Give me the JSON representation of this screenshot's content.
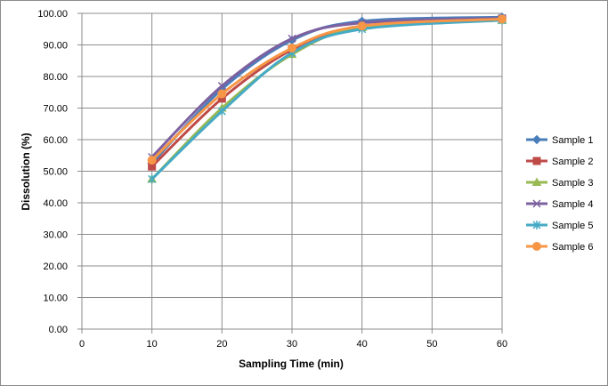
{
  "chart_data": {
    "type": "line",
    "title": "",
    "xlabel": "Sampling Time (min)",
    "ylabel": "Dissolution (%)",
    "xlim": [
      0,
      60
    ],
    "ylim": [
      0,
      100
    ],
    "x_ticks": [
      "0",
      "10",
      "20",
      "30",
      "40",
      "50",
      "60"
    ],
    "y_ticks": [
      "0.00",
      "10.00",
      "20.00",
      "30.00",
      "40.00",
      "50.00",
      "60.00",
      "70.00",
      "80.00",
      "90.00",
      "100.00"
    ],
    "grid": true,
    "smooth": true,
    "legend_position": "right",
    "x": [
      10,
      20,
      30,
      40,
      60
    ],
    "series": [
      {
        "name": "Sample 1",
        "color": "#4a7ebb",
        "marker": "diamond",
        "values": [
          52.5,
          76.0,
          91.5,
          97.5,
          98.8
        ]
      },
      {
        "name": "Sample 2",
        "color": "#be4b48",
        "marker": "square",
        "values": [
          51.5,
          73.0,
          88.5,
          96.0,
          98.2
        ]
      },
      {
        "name": "Sample 3",
        "color": "#98b954",
        "marker": "triangle",
        "values": [
          47.5,
          70.0,
          87.0,
          95.5,
          97.8
        ]
      },
      {
        "name": "Sample 4",
        "color": "#7d60a0",
        "marker": "x",
        "values": [
          54.5,
          77.0,
          92.0,
          97.0,
          98.5
        ]
      },
      {
        "name": "Sample 5",
        "color": "#46aac5",
        "marker": "star",
        "values": [
          47.5,
          69.0,
          87.5,
          95.0,
          97.8
        ]
      },
      {
        "name": "Sample 6",
        "color": "#f79646",
        "marker": "circle",
        "values": [
          53.5,
          74.5,
          89.0,
          96.0,
          98.2
        ]
      }
    ]
  }
}
